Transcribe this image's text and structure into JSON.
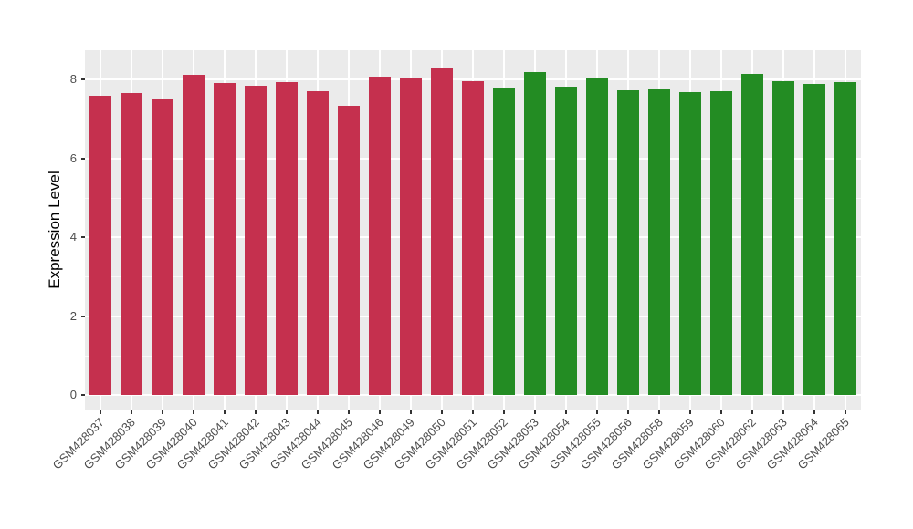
{
  "chart_data": {
    "type": "bar",
    "title": "",
    "xlabel": "",
    "ylabel": "Expression Level",
    "ylim": [
      0,
      8.7
    ],
    "yticks": [
      0,
      2,
      4,
      6,
      8
    ],
    "yticks_minor": [
      1,
      3,
      5,
      7
    ],
    "grid": true,
    "legend": "none",
    "panel_background": "#EBEBEB",
    "gridline_color": "#FFFFFF",
    "axis_text_color": "#4D4D4D",
    "group_colors": {
      "red": "#C5304E",
      "green": "#238C23"
    },
    "bars": [
      {
        "label": "GSM428037",
        "value": 7.58,
        "group": "red"
      },
      {
        "label": "GSM428038",
        "value": 7.65,
        "group": "red"
      },
      {
        "label": "GSM428039",
        "value": 7.51,
        "group": "red"
      },
      {
        "label": "GSM428040",
        "value": 8.11,
        "group": "red"
      },
      {
        "label": "GSM428041",
        "value": 7.9,
        "group": "red"
      },
      {
        "label": "GSM428042",
        "value": 7.84,
        "group": "red"
      },
      {
        "label": "GSM428043",
        "value": 7.93,
        "group": "red"
      },
      {
        "label": "GSM428044",
        "value": 7.71,
        "group": "red"
      },
      {
        "label": "GSM428045",
        "value": 7.32,
        "group": "red"
      },
      {
        "label": "GSM428046",
        "value": 8.07,
        "group": "red"
      },
      {
        "label": "GSM428049",
        "value": 8.02,
        "group": "red"
      },
      {
        "label": "GSM428050",
        "value": 8.28,
        "group": "red"
      },
      {
        "label": "GSM428051",
        "value": 7.96,
        "group": "red"
      },
      {
        "label": "GSM428052",
        "value": 7.77,
        "group": "green"
      },
      {
        "label": "GSM428053",
        "value": 8.19,
        "group": "green"
      },
      {
        "label": "GSM428054",
        "value": 7.82,
        "group": "green"
      },
      {
        "label": "GSM428055",
        "value": 8.03,
        "group": "green"
      },
      {
        "label": "GSM428056",
        "value": 7.73,
        "group": "green"
      },
      {
        "label": "GSM428058",
        "value": 7.74,
        "group": "green"
      },
      {
        "label": "GSM428059",
        "value": 7.67,
        "group": "green"
      },
      {
        "label": "GSM428060",
        "value": 7.71,
        "group": "green"
      },
      {
        "label": "GSM428062",
        "value": 8.13,
        "group": "green"
      },
      {
        "label": "GSM428063",
        "value": 7.95,
        "group": "green"
      },
      {
        "label": "GSM428064",
        "value": 7.89,
        "group": "green"
      },
      {
        "label": "GSM428065",
        "value": 7.94,
        "group": "green"
      }
    ]
  }
}
